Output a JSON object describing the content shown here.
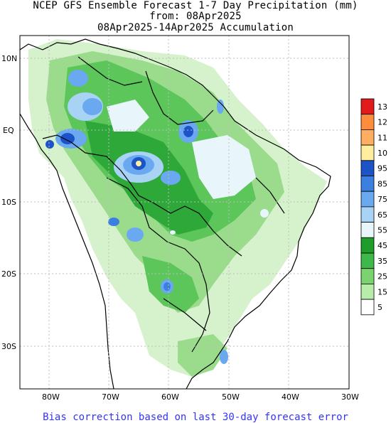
{
  "title": {
    "line1": "NCEP GFS Ensemble Forecast 1-7 Day Precipitation (mm)",
    "line2": "from: 08Apr2025",
    "line3": "08Apr2025-14Apr2025 Accumulation"
  },
  "footer": "Bias correction based on last 30-day forecast error",
  "lat_labels": [
    "10N",
    "EQ",
    "10S",
    "20S",
    "30S"
  ],
  "lon_labels": [
    "80W",
    "70W",
    "60W",
    "50W",
    "40W",
    "30W"
  ],
  "legend": {
    "labels": [
      "13",
      "12",
      "11",
      "10",
      "95",
      "85",
      "75",
      "65",
      "55",
      "45",
      "35",
      "25",
      "15",
      "5"
    ],
    "colors": [
      "#e31a1c",
      "#fd8d3c",
      "#fdae61",
      "#ffeda0",
      "#1c54c8",
      "#3b7fe0",
      "#6aa8f0",
      "#a9d3f5",
      "#e8f6fc",
      "#1f9d2a",
      "#3fb84a",
      "#7bd36f",
      "#b8ecaa",
      "#ffffff"
    ]
  },
  "colors": {
    "coast": "#000000",
    "grid": "#bdbdbd",
    "footer": "#3333ff"
  }
}
